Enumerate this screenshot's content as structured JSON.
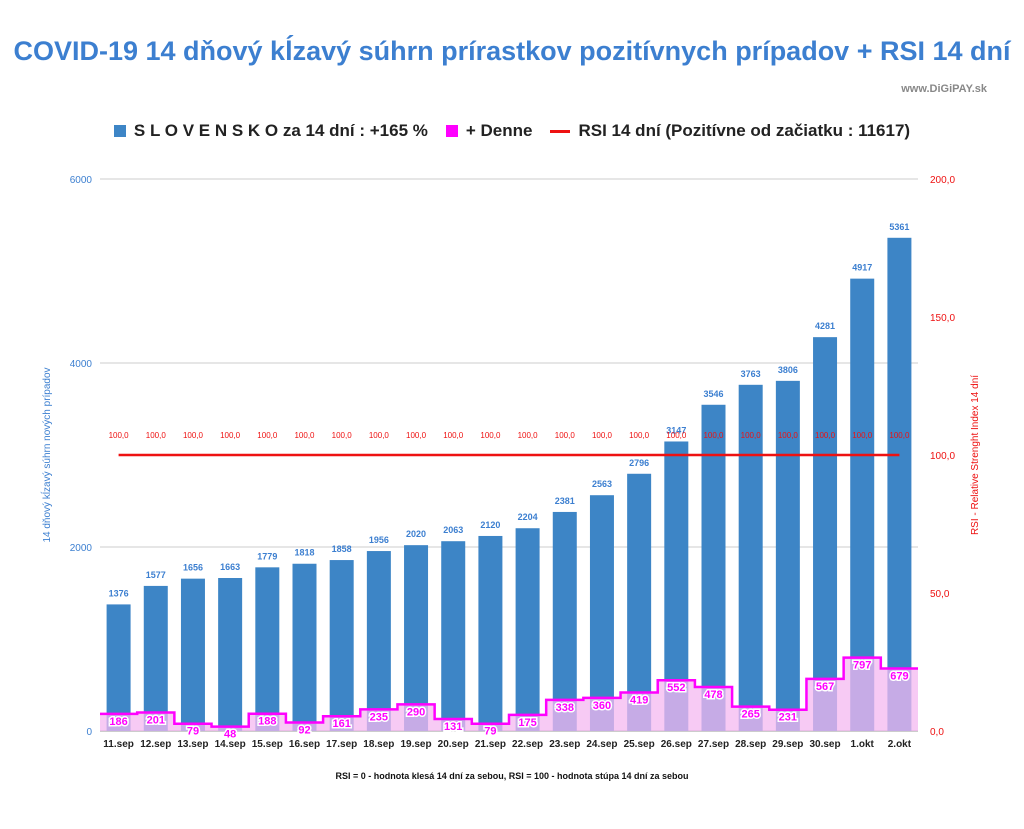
{
  "header": {
    "title": "COVID-19 14 dňový kĺzavý súhrn prírastkov pozitívnych prípadov + RSI 14 dní",
    "watermark": "www.DiGiPAY.sk"
  },
  "legend": {
    "series_1": "S L O V E N S K O za 14 dní : +165 %",
    "series_2": "+ Denne",
    "series_3": "RSI 14 dní (Pozitívne od začiatku : 11617)"
  },
  "footer": {
    "note": "RSI = 0 - hodnota klesá 14 dní za sebou, RSI = 100 - hodnota stúpa 14 dní za sebou"
  },
  "colors": {
    "bars": "#3d85c6",
    "daily": "#ff00ff",
    "daily_fill": "#f4b8f0",
    "rsi": "#ee1111",
    "title": "#3c7fd0",
    "grid": "#cccccc"
  },
  "chart_data": {
    "type": "bar",
    "title": "COVID-19 14 dňový kĺzavý súhrn prírastkov pozitívnych prípadov + RSI 14 dní",
    "categories": [
      "11.sep",
      "12.sep",
      "13.sep",
      "14.sep",
      "15.sep",
      "16.sep",
      "17.sep",
      "18.sep",
      "19.sep",
      "20.sep",
      "21.sep",
      "22.sep",
      "23.sep",
      "24.sep",
      "25.sep",
      "26.sep",
      "27.sep",
      "28.sep",
      "29.sep",
      "30.sep",
      "1.okt",
      "2.okt"
    ],
    "series": [
      {
        "name": "S L O V E N S K O za 14 dní : +165 %",
        "type": "bar",
        "axis": "left",
        "values": [
          1376,
          1577,
          1656,
          1663,
          1779,
          1818,
          1858,
          1956,
          2020,
          2063,
          2120,
          2204,
          2381,
          2563,
          2796,
          3147,
          3546,
          3763,
          3806,
          4281,
          4917,
          5361
        ]
      },
      {
        "name": "+ Denne",
        "type": "step-area",
        "axis": "left",
        "values": [
          186,
          201,
          79,
          48,
          188,
          92,
          161,
          235,
          290,
          131,
          79,
          175,
          338,
          360,
          419,
          552,
          478,
          265,
          231,
          567,
          797,
          679
        ]
      },
      {
        "name": "RSI 14 dní (Pozitívne od začiatku : 11617)",
        "type": "line",
        "axis": "right",
        "values": [
          100,
          100,
          100,
          100,
          100,
          100,
          100,
          100,
          100,
          100,
          100,
          100,
          100,
          100,
          100,
          100,
          100,
          100,
          100,
          100,
          100,
          100
        ],
        "labels": [
          "100,0",
          "100,0",
          "100,0",
          "100,0",
          "100,0",
          "100,0",
          "100,0",
          "100,0",
          "100,0",
          "100,0",
          "100,0",
          "100,0",
          "100,0",
          "100,0",
          "100,0",
          "100,0",
          "100,0",
          "100,0",
          "100,0",
          "100,0",
          "100,0",
          "100,0"
        ]
      }
    ],
    "ylabel": "14 dňový kĺzavý súhrn nových prípadov",
    "ylabel_right": "RSI - Relative Strenght Index 14 dní",
    "ylim": [
      0,
      6000
    ],
    "ylim_right": [
      0,
      200
    ],
    "yticks": [
      "0",
      "2000",
      "4000",
      "6000"
    ],
    "yticks_right": [
      "0,0",
      "50,0",
      "100,0",
      "150,0",
      "200,0"
    ],
    "grid": true,
    "legend_position": "top"
  }
}
